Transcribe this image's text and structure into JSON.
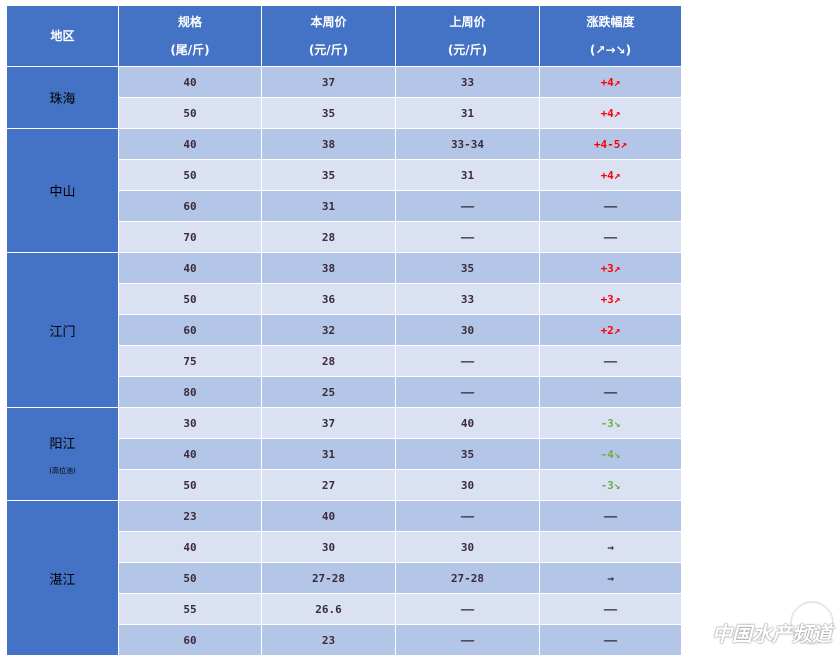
{
  "header": {
    "region": "地区",
    "spec": "规格",
    "spec_unit": "(尾/斤)",
    "this_week": "本周价",
    "this_week_unit": "(元/斤)",
    "last_week": "上周价",
    "last_week_unit": "(元/斤)",
    "change": "涨跌幅度",
    "change_unit": "(↗→↘)"
  },
  "colors": {
    "header": "#4472c4",
    "row_dark": "#b4c6e7",
    "row_light": "#d9e1f2",
    "up": "#ff0000",
    "down": "#70ad47"
  },
  "regions": [
    {
      "name": "珠海",
      "note": "",
      "rows": [
        [
          "40",
          "37",
          "33",
          "+4↗",
          "up"
        ],
        [
          "50",
          "35",
          "31",
          "+4↗",
          "up"
        ]
      ]
    },
    {
      "name": "中山",
      "note": "",
      "rows": [
        [
          "40",
          "38",
          "33-34",
          "+4-5↗",
          "up"
        ],
        [
          "50",
          "35",
          "31",
          "+4↗",
          "up"
        ],
        [
          "60",
          "31",
          "——",
          "——",
          "flat"
        ],
        [
          "70",
          "28",
          "——",
          "——",
          "flat"
        ]
      ]
    },
    {
      "name": "江门",
      "note": "",
      "rows": [
        [
          "40",
          "38",
          "35",
          "+3↗",
          "up"
        ],
        [
          "50",
          "36",
          "33",
          "+3↗",
          "up"
        ],
        [
          "60",
          "32",
          "30",
          "+2↗",
          "up"
        ],
        [
          "75",
          "28",
          "——",
          "——",
          "flat"
        ],
        [
          "80",
          "25",
          "——",
          "——",
          "flat"
        ]
      ]
    },
    {
      "name": "阳江",
      "note": "(高位池)",
      "rows": [
        [
          "30",
          "37",
          "40",
          "-3↘",
          "down"
        ],
        [
          "40",
          "31",
          "35",
          "-4↘",
          "down"
        ],
        [
          "50",
          "27",
          "30",
          "-3↘",
          "down"
        ]
      ]
    },
    {
      "name": "湛江",
      "note": "",
      "rows": [
        [
          "23",
          "40",
          "——",
          "——",
          "flat"
        ],
        [
          "40",
          "30",
          "30",
          "→",
          "flat"
        ],
        [
          "50",
          "27-28",
          "27-28",
          "→",
          "flat"
        ],
        [
          "55",
          "26.6",
          "——",
          "——",
          "flat"
        ],
        [
          "60",
          "23",
          "——",
          "——",
          "flat"
        ]
      ]
    }
  ],
  "watermark": "中国水产频道"
}
